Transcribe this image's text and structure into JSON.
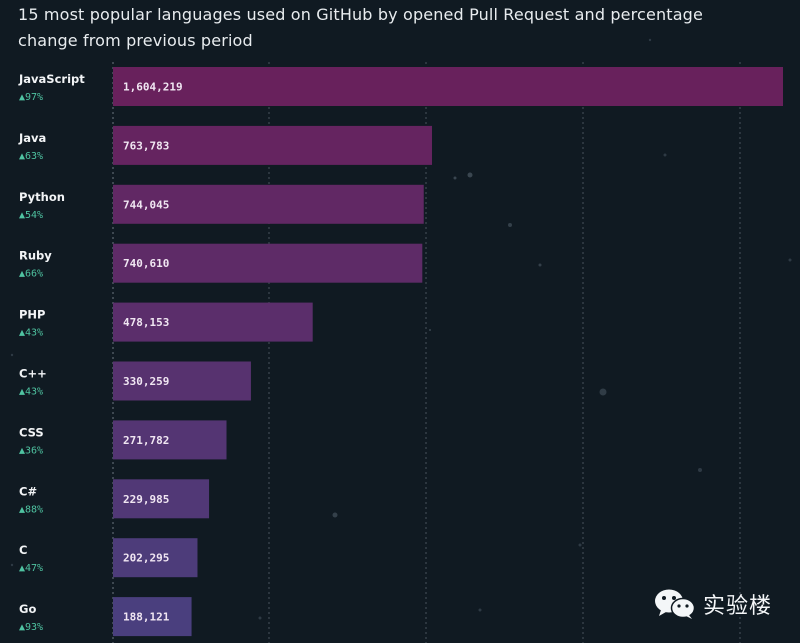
{
  "title": "15 most popular languages used on GitHub by opened Pull Request and percentage change from previous period",
  "watermark": "实验楼",
  "colors": {
    "background": "#101a22",
    "bar_start": "#68215c",
    "bar_end": "#4a3f7e",
    "change_up": "#4fc3a1"
  },
  "chart_data": {
    "type": "bar",
    "orientation": "horizontal",
    "title": "15 most popular languages used on GitHub by opened Pull Request and percentage change from previous period",
    "categories": [
      "JavaScript",
      "Java",
      "Python",
      "Ruby",
      "PHP",
      "C++",
      "CSS",
      "C#",
      "C",
      "Go"
    ],
    "values": [
      1604219,
      763783,
      744045,
      740610,
      478153,
      330259,
      271782,
      229985,
      202295,
      188121
    ],
    "value_labels": [
      "1,604,219",
      "763,783",
      "744,045",
      "740,610",
      "478,153",
      "330,259",
      "271,782",
      "229,985",
      "202,295",
      "188,121"
    ],
    "change_labels": [
      "▲97%",
      "▲63%",
      "▲54%",
      "▲66%",
      "▲43%",
      "▲43%",
      "▲36%",
      "▲88%",
      "▲47%",
      "▲93%"
    ],
    "xlim": [
      0,
      1604219
    ],
    "grid": true,
    "legend": "none"
  }
}
